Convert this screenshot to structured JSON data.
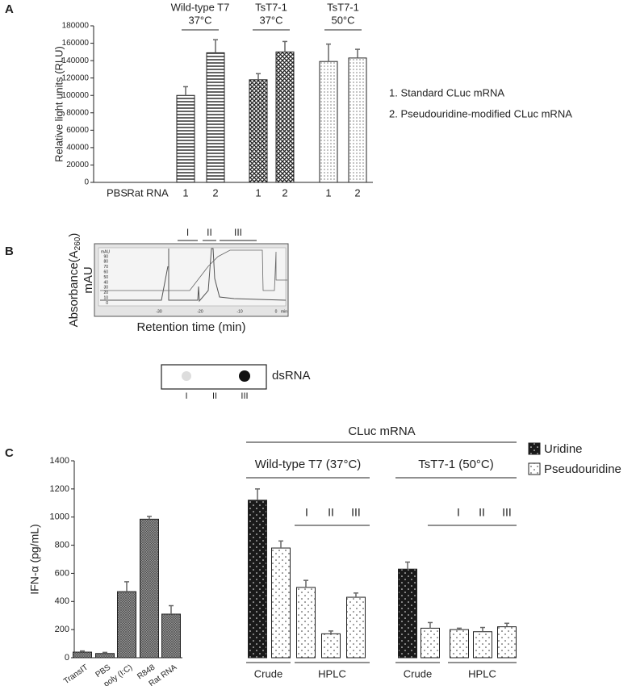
{
  "panels": [
    "A",
    "B",
    "C"
  ],
  "chart_data": [
    {
      "type": "bar",
      "ylabel": "Relative light units (RLU)",
      "categories": [
        "PBS",
        "Rat RNA",
        "1",
        "2",
        "1",
        "2",
        "1",
        "2"
      ],
      "values": [
        0,
        0,
        100000,
        149000,
        118000,
        150000,
        139000,
        143000
      ],
      "errors": [
        null,
        null,
        10000,
        15000,
        7000,
        12000,
        20000,
        10000
      ],
      "patterns": [
        "none",
        "none",
        "hstripe",
        "hstripe",
        "xhatch",
        "xhatch",
        "dots",
        "dots"
      ],
      "ylim": [
        0,
        180000
      ],
      "yticks": [
        0,
        20000,
        40000,
        60000,
        80000,
        100000,
        120000,
        140000,
        160000,
        180000
      ],
      "groups": [
        {
          "name": "Wild-type T7",
          "condition": "37°C"
        },
        {
          "name": "TsT7-1",
          "condition": "37°C"
        },
        {
          "name": "TsT7-1",
          "condition": "50°C"
        }
      ],
      "notes": [
        "1. Standard CLuc mRNA",
        "2. Pseudouridine-modified CLuc mRNA"
      ]
    },
    {
      "type": "bar",
      "ylabel": "IFN-α (pg/mL)",
      "categories": [
        "TransIT",
        "PBS",
        "poly (I:C)",
        "R848",
        "Rat RNA",
        null,
        null,
        null,
        null,
        null,
        null,
        null,
        null,
        null,
        null
      ],
      "values": [
        40,
        30,
        470,
        985,
        310,
        1120,
        780,
        500,
        170,
        430,
        630,
        210,
        200,
        185,
        220
      ],
      "errors": [
        8,
        8,
        70,
        20,
        60,
        80,
        50,
        50,
        20,
        30,
        50,
        40,
        10,
        30,
        25
      ],
      "patterns": [
        "cross",
        "cross",
        "cross",
        "cross",
        "cross",
        "blackdots",
        "whitedots",
        "whitedots",
        "whitedots",
        "whitedots",
        "blackdots",
        "whitedots",
        "whitedots",
        "whitedots",
        "whitedots"
      ],
      "ylim": [
        0,
        1400
      ],
      "yticks": [
        0,
        200,
        400,
        600,
        800,
        1000,
        1200,
        1400
      ],
      "legend": [
        {
          "name": "Uridine",
          "pattern": "blackdots"
        },
        {
          "name": "Pseudouridine",
          "pattern": "whitedots"
        }
      ],
      "annotations": {
        "top": "CLuc mRNA",
        "groups": [
          "Wild-type T7 (37°C)",
          "TsT7-1 (50°C)"
        ],
        "fractions": [
          [
            "I",
            "II",
            "III"
          ],
          [
            "I",
            "II",
            "III"
          ]
        ],
        "methods": [
          "Crude",
          "HPLC",
          "Crude",
          "HPLC"
        ]
      }
    }
  ],
  "panel_b": {
    "fractions": [
      "I",
      "II",
      "III"
    ],
    "ylabel": {
      "text": "Absorbance(A",
      "subscript": "260",
      "close": ")",
      "unit": "mAU"
    },
    "xlabel": "Retention time (min)",
    "inner_yunit": "mAU",
    "inner_yticks": [
      "90",
      "80",
      "70",
      "60",
      "50",
      "40",
      "30",
      "20",
      "10",
      "0"
    ],
    "inner_xticks": [
      "-30",
      "-20",
      "-10",
      "0"
    ],
    "inner_xunit": "min",
    "blot_label": "dsRNA",
    "blot_lanes": [
      "I",
      "II",
      "III"
    ]
  }
}
